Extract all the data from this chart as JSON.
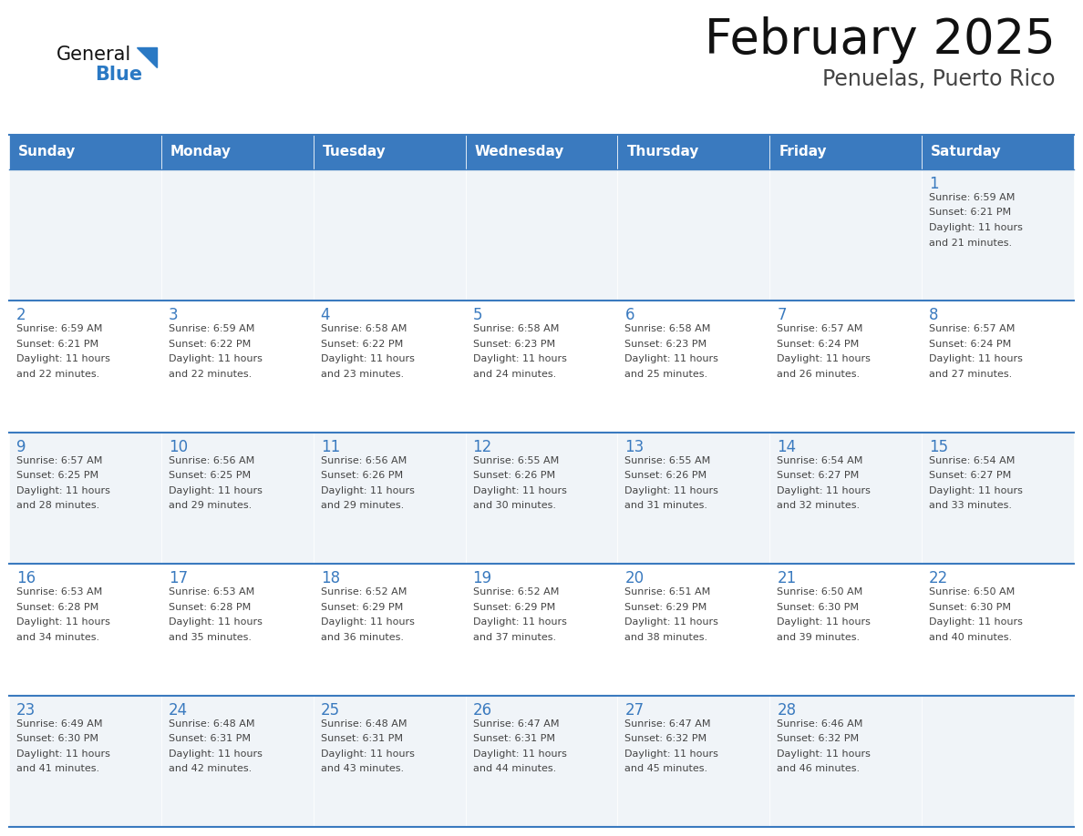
{
  "title": "February 2025",
  "subtitle": "Penuelas, Puerto Rico",
  "days_of_week": [
    "Sunday",
    "Monday",
    "Tuesday",
    "Wednesday",
    "Thursday",
    "Friday",
    "Saturday"
  ],
  "header_bg_color": "#3a7abf",
  "header_text_color": "#ffffff",
  "cell_bg_color_odd": "#f0f4f8",
  "cell_bg_color_even": "#ffffff",
  "day_number_color": "#3a7abf",
  "text_color": "#444444",
  "line_color": "#3a7abf",
  "title_color": "#111111",
  "subtitle_color": "#444444",
  "logo_general_color": "#111111",
  "logo_blue_color": "#2a79c4",
  "weeks": [
    [
      null,
      null,
      null,
      null,
      null,
      null,
      1
    ],
    [
      2,
      3,
      4,
      5,
      6,
      7,
      8
    ],
    [
      9,
      10,
      11,
      12,
      13,
      14,
      15
    ],
    [
      16,
      17,
      18,
      19,
      20,
      21,
      22
    ],
    [
      23,
      24,
      25,
      26,
      27,
      28,
      null
    ]
  ],
  "cell_data": {
    "1": {
      "sunrise": "6:59 AM",
      "sunset": "6:21 PM",
      "daylight_hours": "11",
      "daylight_minutes": "21"
    },
    "2": {
      "sunrise": "6:59 AM",
      "sunset": "6:21 PM",
      "daylight_hours": "11",
      "daylight_minutes": "22"
    },
    "3": {
      "sunrise": "6:59 AM",
      "sunset": "6:22 PM",
      "daylight_hours": "11",
      "daylight_minutes": "22"
    },
    "4": {
      "sunrise": "6:58 AM",
      "sunset": "6:22 PM",
      "daylight_hours": "11",
      "daylight_minutes": "23"
    },
    "5": {
      "sunrise": "6:58 AM",
      "sunset": "6:23 PM",
      "daylight_hours": "11",
      "daylight_minutes": "24"
    },
    "6": {
      "sunrise": "6:58 AM",
      "sunset": "6:23 PM",
      "daylight_hours": "11",
      "daylight_minutes": "25"
    },
    "7": {
      "sunrise": "6:57 AM",
      "sunset": "6:24 PM",
      "daylight_hours": "11",
      "daylight_minutes": "26"
    },
    "8": {
      "sunrise": "6:57 AM",
      "sunset": "6:24 PM",
      "daylight_hours": "11",
      "daylight_minutes": "27"
    },
    "9": {
      "sunrise": "6:57 AM",
      "sunset": "6:25 PM",
      "daylight_hours": "11",
      "daylight_minutes": "28"
    },
    "10": {
      "sunrise": "6:56 AM",
      "sunset": "6:25 PM",
      "daylight_hours": "11",
      "daylight_minutes": "29"
    },
    "11": {
      "sunrise": "6:56 AM",
      "sunset": "6:26 PM",
      "daylight_hours": "11",
      "daylight_minutes": "29"
    },
    "12": {
      "sunrise": "6:55 AM",
      "sunset": "6:26 PM",
      "daylight_hours": "11",
      "daylight_minutes": "30"
    },
    "13": {
      "sunrise": "6:55 AM",
      "sunset": "6:26 PM",
      "daylight_hours": "11",
      "daylight_minutes": "31"
    },
    "14": {
      "sunrise": "6:54 AM",
      "sunset": "6:27 PM",
      "daylight_hours": "11",
      "daylight_minutes": "32"
    },
    "15": {
      "sunrise": "6:54 AM",
      "sunset": "6:27 PM",
      "daylight_hours": "11",
      "daylight_minutes": "33"
    },
    "16": {
      "sunrise": "6:53 AM",
      "sunset": "6:28 PM",
      "daylight_hours": "11",
      "daylight_minutes": "34"
    },
    "17": {
      "sunrise": "6:53 AM",
      "sunset": "6:28 PM",
      "daylight_hours": "11",
      "daylight_minutes": "35"
    },
    "18": {
      "sunrise": "6:52 AM",
      "sunset": "6:29 PM",
      "daylight_hours": "11",
      "daylight_minutes": "36"
    },
    "19": {
      "sunrise": "6:52 AM",
      "sunset": "6:29 PM",
      "daylight_hours": "11",
      "daylight_minutes": "37"
    },
    "20": {
      "sunrise": "6:51 AM",
      "sunset": "6:29 PM",
      "daylight_hours": "11",
      "daylight_minutes": "38"
    },
    "21": {
      "sunrise": "6:50 AM",
      "sunset": "6:30 PM",
      "daylight_hours": "11",
      "daylight_minutes": "39"
    },
    "22": {
      "sunrise": "6:50 AM",
      "sunset": "6:30 PM",
      "daylight_hours": "11",
      "daylight_minutes": "40"
    },
    "23": {
      "sunrise": "6:49 AM",
      "sunset": "6:30 PM",
      "daylight_hours": "11",
      "daylight_minutes": "41"
    },
    "24": {
      "sunrise": "6:48 AM",
      "sunset": "6:31 PM",
      "daylight_hours": "11",
      "daylight_minutes": "42"
    },
    "25": {
      "sunrise": "6:48 AM",
      "sunset": "6:31 PM",
      "daylight_hours": "11",
      "daylight_minutes": "43"
    },
    "26": {
      "sunrise": "6:47 AM",
      "sunset": "6:31 PM",
      "daylight_hours": "11",
      "daylight_minutes": "44"
    },
    "27": {
      "sunrise": "6:47 AM",
      "sunset": "6:32 PM",
      "daylight_hours": "11",
      "daylight_minutes": "45"
    },
    "28": {
      "sunrise": "6:46 AM",
      "sunset": "6:32 PM",
      "daylight_hours": "11",
      "daylight_minutes": "46"
    }
  }
}
